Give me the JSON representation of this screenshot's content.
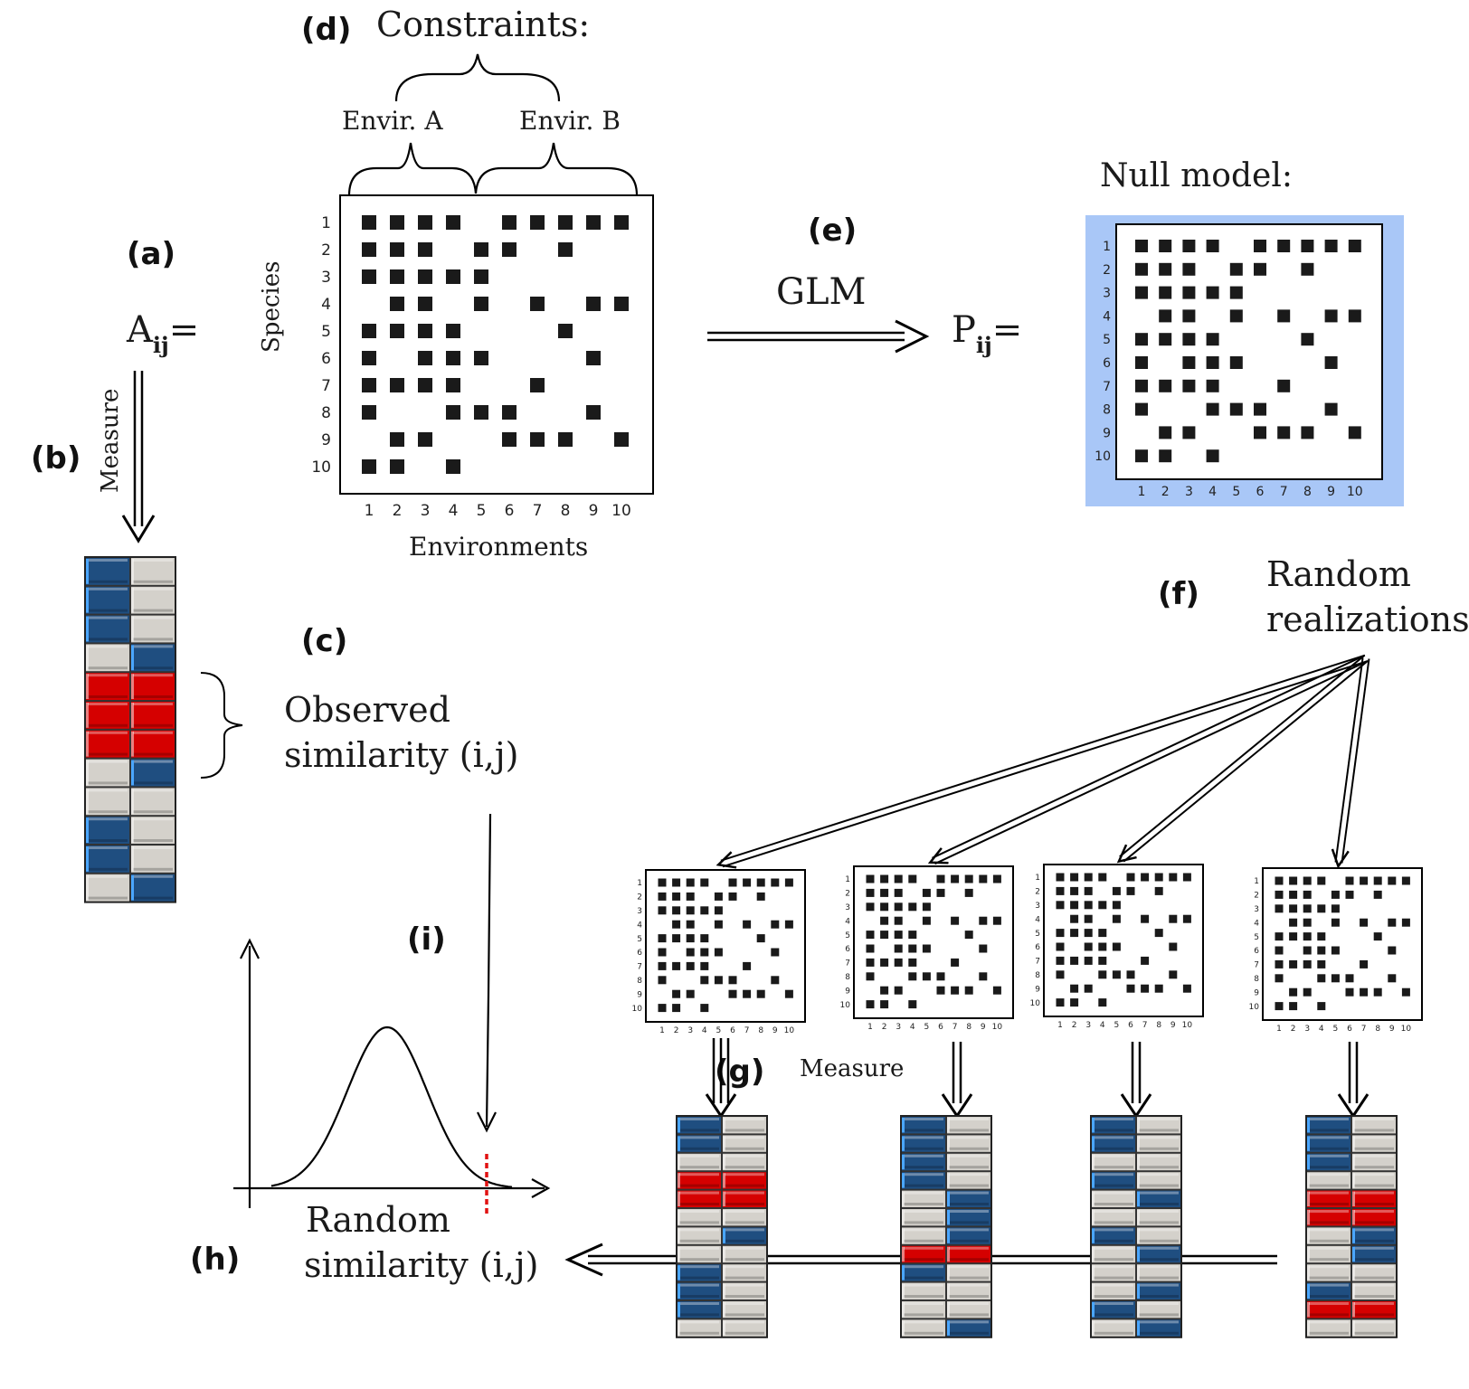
{
  "labels": {
    "a": "(a)",
    "b": "(b)",
    "c": "(c)",
    "d": "(d)",
    "e": "(e)",
    "f": "(f)",
    "g": "(g)",
    "h": "(h)",
    "i": "(i)"
  },
  "aij_base": "A",
  "aij_sub": "ij",
  "equals": "=",
  "pij_base": "P",
  "pij_sub": "ij",
  "measure_label": "Measure",
  "constraints_title": "Constraints:",
  "envir_a": "Envir. A",
  "envir_b": "Envir. B",
  "species_label": "Species",
  "environments_label": "Environments",
  "glm_label": "GLM",
  "null_model_title": "Null model:",
  "random_realizations": [
    "Random",
    "realizations"
  ],
  "observed_similarity": [
    "Observed",
    "similarity (i,j)"
  ],
  "random_similarity": [
    "Random",
    "similarity (i,j)"
  ],
  "axis_ticks": [
    "1",
    "2",
    "3",
    "4",
    "5",
    "6",
    "7",
    "8",
    "9",
    "10"
  ],
  "colors": {
    "blue": "#1f4e80",
    "gray": "#d4d1cb",
    "red": "#d50000",
    "null_bg": "#a9c7f7",
    "cell": "#1a1a1a",
    "dashed": "#e11111"
  },
  "observed_matrix": [
    [
      1,
      1,
      1,
      1,
      0,
      1,
      1,
      1,
      1,
      1
    ],
    [
      1,
      1,
      1,
      0,
      1,
      1,
      0,
      1,
      0,
      0
    ],
    [
      1,
      1,
      1,
      1,
      1,
      0,
      0,
      0,
      0,
      0
    ],
    [
      0,
      1,
      1,
      0,
      1,
      0,
      1,
      0,
      1,
      1
    ],
    [
      1,
      1,
      1,
      1,
      0,
      0,
      0,
      1,
      0,
      0
    ],
    [
      1,
      0,
      1,
      1,
      1,
      0,
      0,
      0,
      1,
      0
    ],
    [
      1,
      1,
      1,
      1,
      0,
      0,
      1,
      0,
      0,
      0
    ],
    [
      1,
      0,
      0,
      1,
      1,
      1,
      0,
      0,
      1,
      0
    ],
    [
      0,
      1,
      1,
      0,
      0,
      1,
      1,
      1,
      0,
      1
    ],
    [
      1,
      1,
      0,
      1,
      0,
      0,
      0,
      0,
      0,
      0
    ]
  ],
  "random_matrices": [
    [
      [
        1,
        1,
        1,
        1,
        0,
        1,
        1,
        1,
        1,
        1
      ],
      [
        1,
        1,
        1,
        0,
        1,
        1,
        0,
        1,
        0,
        0
      ],
      [
        1,
        1,
        1,
        1,
        1,
        0,
        0,
        0,
        0,
        0
      ],
      [
        0,
        1,
        1,
        0,
        1,
        0,
        1,
        0,
        1,
        1
      ],
      [
        1,
        1,
        1,
        1,
        0,
        0,
        0,
        1,
        0,
        0
      ],
      [
        1,
        0,
        1,
        1,
        1,
        0,
        0,
        0,
        1,
        0
      ],
      [
        1,
        1,
        1,
        1,
        0,
        0,
        1,
        0,
        0,
        0
      ],
      [
        1,
        0,
        0,
        1,
        1,
        1,
        0,
        0,
        1,
        0
      ],
      [
        0,
        1,
        1,
        0,
        0,
        1,
        1,
        1,
        0,
        1
      ],
      [
        1,
        1,
        0,
        1,
        0,
        0,
        0,
        0,
        0,
        0
      ]
    ],
    [
      [
        1,
        1,
        1,
        1,
        0,
        1,
        1,
        1,
        1,
        1
      ],
      [
        1,
        1,
        1,
        0,
        1,
        1,
        0,
        1,
        0,
        0
      ],
      [
        1,
        1,
        1,
        1,
        1,
        0,
        0,
        0,
        0,
        0
      ],
      [
        0,
        1,
        1,
        0,
        1,
        0,
        1,
        0,
        1,
        1
      ],
      [
        1,
        1,
        1,
        1,
        0,
        0,
        0,
        1,
        0,
        0
      ],
      [
        1,
        0,
        1,
        1,
        1,
        0,
        0,
        0,
        1,
        0
      ],
      [
        1,
        1,
        1,
        1,
        0,
        0,
        1,
        0,
        0,
        0
      ],
      [
        1,
        0,
        0,
        1,
        1,
        1,
        0,
        0,
        1,
        0
      ],
      [
        0,
        1,
        1,
        0,
        0,
        1,
        1,
        1,
        0,
        1
      ],
      [
        1,
        1,
        0,
        1,
        0,
        0,
        0,
        0,
        0,
        0
      ]
    ],
    [
      [
        1,
        1,
        1,
        1,
        0,
        1,
        1,
        1,
        1,
        1
      ],
      [
        1,
        1,
        1,
        0,
        1,
        1,
        0,
        1,
        0,
        0
      ],
      [
        1,
        1,
        1,
        1,
        1,
        0,
        0,
        0,
        0,
        0
      ],
      [
        0,
        1,
        1,
        0,
        1,
        0,
        1,
        0,
        1,
        1
      ],
      [
        1,
        1,
        1,
        1,
        0,
        0,
        0,
        1,
        0,
        0
      ],
      [
        1,
        0,
        1,
        1,
        1,
        0,
        0,
        0,
        1,
        0
      ],
      [
        1,
        1,
        1,
        1,
        0,
        0,
        1,
        0,
        0,
        0
      ],
      [
        1,
        0,
        0,
        1,
        1,
        1,
        0,
        0,
        1,
        0
      ],
      [
        0,
        1,
        1,
        0,
        0,
        1,
        1,
        1,
        0,
        1
      ],
      [
        1,
        1,
        0,
        1,
        0,
        0,
        0,
        0,
        0,
        0
      ]
    ],
    [
      [
        1,
        1,
        1,
        1,
        0,
        1,
        1,
        1,
        1,
        1
      ],
      [
        1,
        1,
        1,
        0,
        1,
        1,
        0,
        1,
        0,
        0
      ],
      [
        1,
        1,
        1,
        1,
        1,
        0,
        0,
        0,
        0,
        0
      ],
      [
        0,
        1,
        1,
        0,
        1,
        0,
        1,
        0,
        1,
        1
      ],
      [
        1,
        1,
        1,
        1,
        0,
        0,
        0,
        1,
        0,
        0
      ],
      [
        1,
        0,
        1,
        1,
        1,
        0,
        0,
        0,
        1,
        0
      ],
      [
        1,
        1,
        1,
        1,
        0,
        0,
        1,
        0,
        0,
        0
      ],
      [
        1,
        0,
        0,
        1,
        1,
        1,
        0,
        0,
        1,
        0
      ],
      [
        0,
        1,
        1,
        0,
        0,
        1,
        1,
        1,
        0,
        1
      ],
      [
        1,
        1,
        0,
        1,
        0,
        0,
        0,
        0,
        0,
        0
      ]
    ]
  ],
  "observed_strip": [
    [
      "B",
      "G"
    ],
    [
      "B",
      "G"
    ],
    [
      "B",
      "G"
    ],
    [
      "G",
      "B"
    ],
    [
      "R",
      "R"
    ],
    [
      "R",
      "R"
    ],
    [
      "R",
      "R"
    ],
    [
      "G",
      "B"
    ],
    [
      "G",
      "G"
    ],
    [
      "B",
      "G"
    ],
    [
      "B",
      "G"
    ],
    [
      "G",
      "B"
    ]
  ],
  "random_strips": [
    [
      [
        "B",
        "G"
      ],
      [
        "B",
        "G"
      ],
      [
        "G",
        "G"
      ],
      [
        "R",
        "R"
      ],
      [
        "R",
        "R"
      ],
      [
        "G",
        "G"
      ],
      [
        "G",
        "B"
      ],
      [
        "G",
        "G"
      ],
      [
        "B",
        "G"
      ],
      [
        "B",
        "G"
      ],
      [
        "B",
        "G"
      ],
      [
        "G",
        "G"
      ]
    ],
    [
      [
        "B",
        "G"
      ],
      [
        "B",
        "G"
      ],
      [
        "B",
        "G"
      ],
      [
        "B",
        "G"
      ],
      [
        "G",
        "B"
      ],
      [
        "G",
        "B"
      ],
      [
        "G",
        "B"
      ],
      [
        "R",
        "R"
      ],
      [
        "B",
        "G"
      ],
      [
        "G",
        "G"
      ],
      [
        "G",
        "G"
      ],
      [
        "G",
        "B"
      ]
    ],
    [
      [
        "B",
        "G"
      ],
      [
        "B",
        "G"
      ],
      [
        "G",
        "G"
      ],
      [
        "B",
        "G"
      ],
      [
        "G",
        "B"
      ],
      [
        "G",
        "G"
      ],
      [
        "B",
        "G"
      ],
      [
        "G",
        "B"
      ],
      [
        "G",
        "G"
      ],
      [
        "G",
        "B"
      ],
      [
        "B",
        "G"
      ],
      [
        "G",
        "B"
      ]
    ],
    [
      [
        "B",
        "G"
      ],
      [
        "B",
        "G"
      ],
      [
        "B",
        "G"
      ],
      [
        "G",
        "G"
      ],
      [
        "R",
        "R"
      ],
      [
        "R",
        "R"
      ],
      [
        "G",
        "B"
      ],
      [
        "G",
        "B"
      ],
      [
        "G",
        "G"
      ],
      [
        "B",
        "G"
      ],
      [
        "R",
        "R"
      ],
      [
        "G",
        "G"
      ]
    ]
  ]
}
